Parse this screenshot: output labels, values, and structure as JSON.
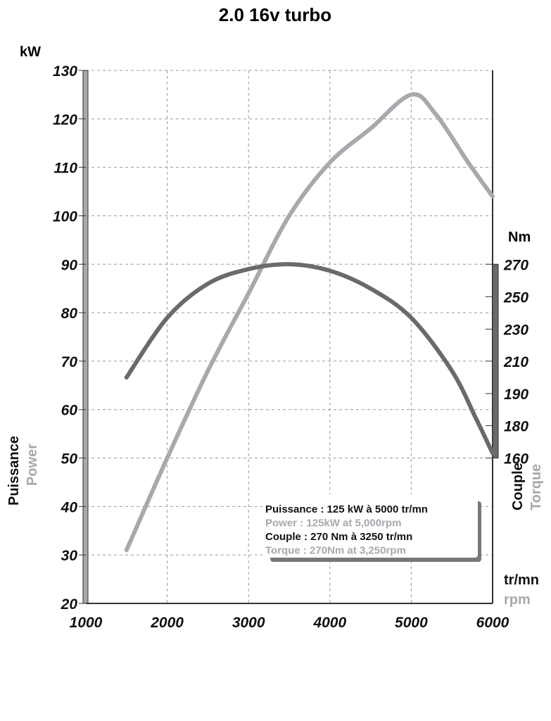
{
  "chart_data": {
    "type": "line",
    "title": "2.0 16v turbo",
    "xlabel": [
      "tr/mn",
      "rpm"
    ],
    "ylabel_left": [
      "Puissance",
      "Power"
    ],
    "ylabel_right": [
      "Couple",
      "Torque"
    ],
    "left_unit": "kW",
    "right_unit": "Nm",
    "xlim": [
      1000,
      6000
    ],
    "ylim": [
      20,
      130
    ],
    "x_ticks": [
      1000,
      2000,
      3000,
      4000,
      5000,
      6000
    ],
    "y_ticks": [
      20,
      30,
      40,
      50,
      60,
      70,
      80,
      90,
      100,
      110,
      120,
      130
    ],
    "right_ticks": [
      {
        "label": "270",
        "kw_equiv": 90
      },
      {
        "label": "250",
        "kw_equiv": 83.3
      },
      {
        "label": "230",
        "kw_equiv": 76.6
      },
      {
        "label": "210",
        "kw_equiv": 70
      },
      {
        "label": "190",
        "kw_equiv": 63.3
      },
      {
        "label": "180",
        "kw_equiv": 56.7
      },
      {
        "label": "160",
        "kw_equiv": 50
      }
    ],
    "grid": true,
    "series": [
      {
        "name": "Power",
        "unit": "kW",
        "color": "#a8a8ae",
        "x": [
          1500,
          2000,
          2500,
          3000,
          3500,
          4000,
          4500,
          5000,
          5300,
          5700,
          6000
        ],
        "values": [
          31,
          50,
          68,
          84,
          100,
          111,
          118,
          125,
          121,
          111,
          104
        ]
      },
      {
        "name": "Torque",
        "unit": "Nm",
        "color": "#6a6a6a",
        "x": [
          1500,
          2000,
          2500,
          3000,
          3500,
          4000,
          4500,
          5000,
          5500,
          5800,
          6000
        ],
        "values": [
          200,
          237,
          258,
          267,
          270,
          266,
          255,
          237,
          204,
          182,
          163
        ]
      }
    ],
    "legend": [
      {
        "text": "Puissance : 125 kW à 5000 tr/mn",
        "color": "#111"
      },
      {
        "text": "Power : 125kW at 5,000rpm",
        "color": "#a8a8ae"
      },
      {
        "text": "Couple : 270 Nm à 3250 tr/mn",
        "color": "#111"
      },
      {
        "text": "Torque : 270Nm at 3,250rpm",
        "color": "#a8a8ae"
      }
    ]
  }
}
